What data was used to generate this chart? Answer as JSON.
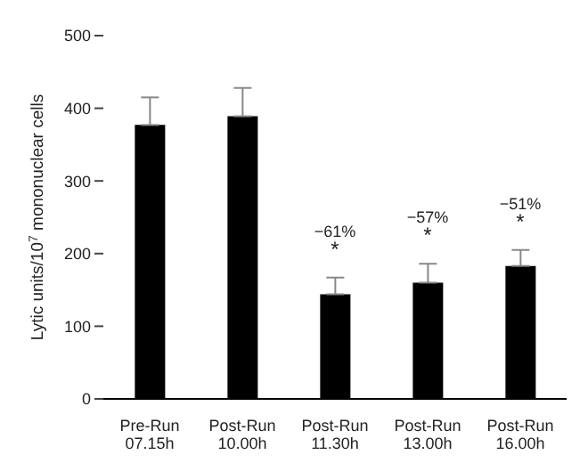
{
  "chart_data": {
    "type": "bar",
    "ylabel": "Lytic units/10$^{7}$ mononuclear cells",
    "categories": [
      "Pre-Run\n07.15h",
      "Post-Run\n10.00h",
      "Post-Run\n11.30h",
      "Post-Run\n13.00h",
      "Post-Run\n16.00h"
    ],
    "values": [
      377,
      389,
      144,
      160,
      183
    ],
    "errors": [
      [
        377,
        415
      ],
      [
        389,
        428
      ],
      [
        144,
        167
      ],
      [
        160,
        186
      ],
      [
        183,
        205
      ]
    ],
    "color": "#000000",
    "ylim": [
      0,
      500
    ],
    "yticks": [
      0,
      100,
      200,
      300,
      400,
      500
    ],
    "grid": false,
    "annotations": [
      {
        "text": "−61%",
        "x": "Post-Run\n11.30h",
        "y": 167
      },
      {
        "text": "*",
        "x": "Post-Run\n11.30h",
        "y": 167
      },
      {
        "text": "−57%",
        "x": "Post-Run\n13.00h",
        "y": 186
      },
      {
        "text": "*",
        "x": "Post-Run\n13.00h",
        "y": 186
      },
      {
        "text": "−51%",
        "x": "Post-Run\n16.00h",
        "y": 205
      },
      {
        "text": "*",
        "x": "Post-Run\n16.00h",
        "y": 205
      }
    ]
  }
}
